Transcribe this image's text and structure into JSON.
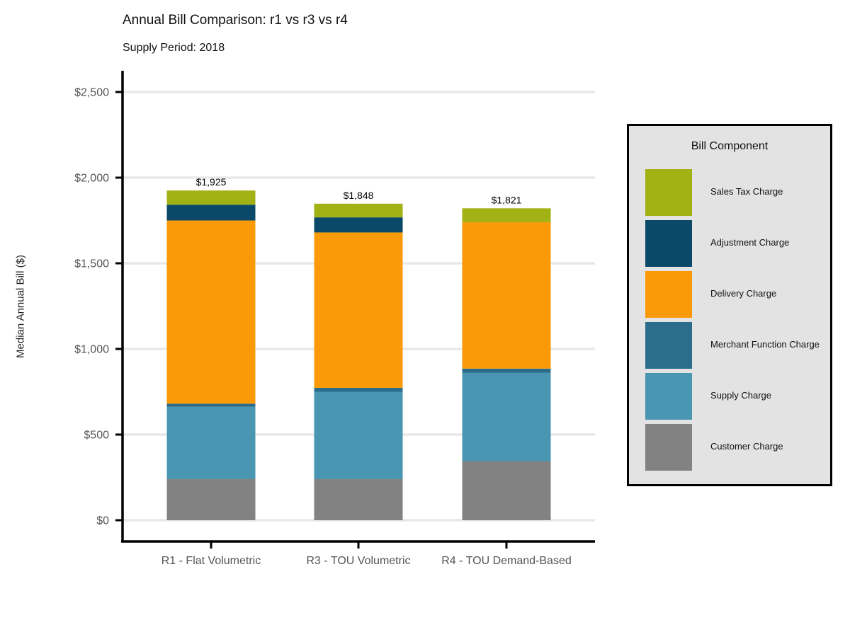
{
  "chart_data": {
    "type": "bar",
    "stacked": true,
    "title": "Annual Bill Comparison: r1 vs r3 vs r4",
    "subtitle": "Supply Period: 2018",
    "xlabel": "",
    "ylabel": "Median Annual Bill ($)",
    "ylim": [
      0,
      2500
    ],
    "yticks": [
      0,
      500,
      1000,
      1500,
      2000,
      2500
    ],
    "ytick_labels": [
      "$0",
      "$500",
      "$1,000",
      "$1,500",
      "$2,000",
      "$2,500"
    ],
    "grid": "horizontal",
    "legend_position": "right",
    "legend_title": "Bill Component",
    "categories": [
      "R1 - Flat Volumetric",
      "R3 - TOU Volumetric",
      "R4 - TOU Demand-Based"
    ],
    "totals": [
      1925,
      1848,
      1821
    ],
    "total_labels": [
      "$1,925",
      "$1,848",
      "$1,821"
    ],
    "series": [
      {
        "name": "Customer Charge",
        "color": "#828282",
        "values": [
          240,
          240,
          345
        ]
      },
      {
        "name": "Supply Charge",
        "color": "#4996b2",
        "values": [
          422,
          510,
          515
        ]
      },
      {
        "name": "Merchant Function Charge",
        "color": "#2b6d8b",
        "values": [
          18,
          23,
          25
        ]
      },
      {
        "name": "Delivery Charge",
        "color": "#fa9a08",
        "values": [
          1070,
          907,
          855
        ]
      },
      {
        "name": "Adjustment Charge",
        "color": "#0a4a68",
        "values": [
          92,
          88,
          0
        ]
      },
      {
        "name": "Sales Tax Charge",
        "color": "#a2b114",
        "values": [
          83,
          80,
          81
        ]
      }
    ]
  }
}
